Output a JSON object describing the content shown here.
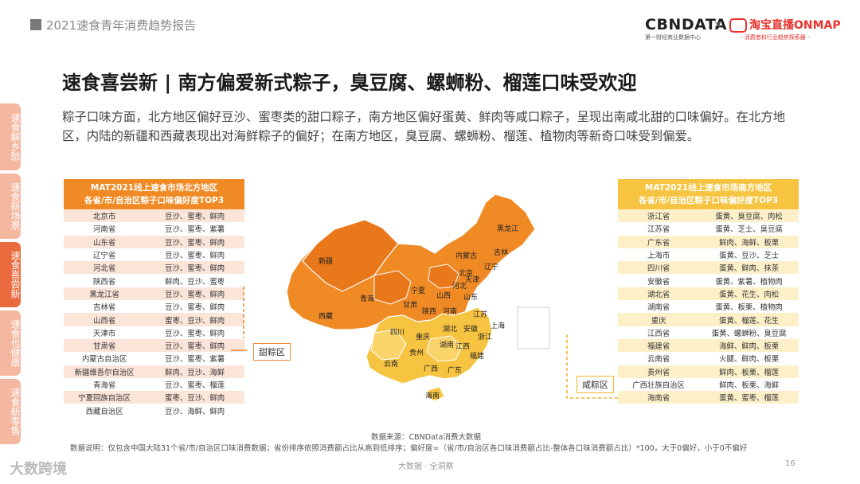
{
  "header": {
    "report_title": "2021速食青年消费趋势报告",
    "logo_cbn": "CBNDATA",
    "logo_cbn_sub": "第一财经商业数据中心",
    "times": "×",
    "logo_tb": "淘宝直播ONMAP",
    "logo_tb_sub": "- 消费者和行业趋势探索器 -"
  },
  "headline": "速食喜尝新 | 南方偏爱新式粽子，臭豆腐、螺蛳粉、榴莲口味受欢迎",
  "paragraph": "粽子口味方面，北方地区偏好豆沙、蜜枣类的甜口粽子，南方地区偏好蛋黄、鲜肉等咸口粽子，呈现出南咸北甜的口味偏好。在北方地区，内陆的新疆和西藏表现出对海鲜粽子的偏好；在南方地区，臭豆腐、螺蛳粉、榴莲、植物肉等新奇口味受到偏爱。",
  "sidebar": [
    {
      "label": "速食解乡愁",
      "active": false
    },
    {
      "label": "速食新场景",
      "active": false
    },
    {
      "label": "速食喜尝新",
      "active": true
    },
    {
      "label": "速食也健康",
      "active": false
    },
    {
      "label": "速食新零售",
      "active": false
    }
  ],
  "colors": {
    "north": "#f08a25",
    "north_dark": "#e9781a",
    "south": "#f7c442",
    "south_light": "#fad46a",
    "tab": "#f4b7a0",
    "tab_active": "#e96a3d"
  },
  "north_table": {
    "title_line1": "MAT2021线上速食市场北方地区",
    "title_line2": "各省/市/自治区粽子口味偏好度TOP3",
    "rows": [
      [
        "北京市",
        "豆沙、蜜枣、鲜肉"
      ],
      [
        "河南省",
        "豆沙、蜜枣、紫薯"
      ],
      [
        "山东省",
        "豆沙、蜜枣、鲜肉"
      ],
      [
        "辽宁省",
        "豆沙、蜜枣、鲜肉"
      ],
      [
        "河北省",
        "豆沙、蜜枣、鲜肉"
      ],
      [
        "陕西省",
        "鲜肉、豆沙、蜜枣"
      ],
      [
        "黑龙江省",
        "豆沙、蜜枣、鲜肉"
      ],
      [
        "吉林省",
        "豆沙、蜜枣、鲜肉"
      ],
      [
        "山西省",
        "蜜枣、豆沙、鲜肉"
      ],
      [
        "天津市",
        "豆沙、蜜枣、鲜肉"
      ],
      [
        "甘肃省",
        "豆沙、蜜枣、鲜肉"
      ],
      [
        "内蒙古自治区",
        "豆沙、蜜枣、紫薯"
      ],
      [
        "新疆维吾尔自治区",
        "鲜肉、豆沙、海鲜"
      ],
      [
        "青海省",
        "豆沙、蜜枣、榴莲"
      ],
      [
        "宁夏回族自治区",
        "蜜枣、豆沙、鲜肉"
      ],
      [
        "西藏自治区",
        "豆沙、海鲜、鲜肉"
      ]
    ]
  },
  "south_table": {
    "title_line1": "MAT2021线上速食市场南方地区",
    "title_line2": "各省/市/自治区粽子口味偏好度TOP3",
    "rows": [
      [
        "浙江省",
        "蛋黄、臭豆腐、肉松"
      ],
      [
        "江苏省",
        "蛋黄、芝士、臭豆腐"
      ],
      [
        "广东省",
        "鲜肉、海鲜、板栗"
      ],
      [
        "上海市",
        "蛋黄、豆沙、芝士"
      ],
      [
        "四川省",
        "蛋黄、鲜肉、抹茶"
      ],
      [
        "安徽省",
        "蛋黄、紫薯、植物肉"
      ],
      [
        "湖北省",
        "蛋黄、花生、肉松"
      ],
      [
        "湖南省",
        "蛋黄、板栗、植物肉"
      ],
      [
        "重庆",
        "蛋黄、榴莲、花生"
      ],
      [
        "江西省",
        "蛋黄、螺蛳粉、臭豆腐"
      ],
      [
        "福建省",
        "海鲜、鲜肉、板栗"
      ],
      [
        "云南省",
        "火腿、鲜肉、板栗"
      ],
      [
        "贵州省",
        "鲜肉、板栗、榴莲"
      ],
      [
        "广西壮族自治区",
        "鲜肉、板栗、海鲜"
      ],
      [
        "海南省",
        "蛋黄、蜜枣、榴莲"
      ]
    ]
  },
  "map": {
    "sweet_label": "甜粽区",
    "salty_label": "咸粽区",
    "north_names": [
      "新疆",
      "西藏",
      "青海",
      "甘肃",
      "宁夏",
      "内蒙古",
      "黑龙江",
      "吉林",
      "辽宁",
      "北京",
      "天津",
      "河北",
      "山西",
      "陕西",
      "山东",
      "河南"
    ],
    "south_names": [
      "四川",
      "重庆",
      "贵州",
      "云南",
      "广西",
      "广东",
      "海南",
      "湖南",
      "湖北",
      "安徽",
      "江苏",
      "浙江",
      "上海",
      "江西",
      "福建"
    ]
  },
  "footer": {
    "source": "数据来源：CBNData消费大数据",
    "note": "数据说明：仅包含中国大陆31个省/市/自治区口味消费数据；省份排序依照消费额占比从高到低排序；偏好度=（省/市/自治区各口味消费额占比-整体各口味消费额占比）*100，大于0偏好，小于0不偏好",
    "center": "大数据 · 全洞察",
    "page": "16",
    "brand": "大数跨境"
  }
}
